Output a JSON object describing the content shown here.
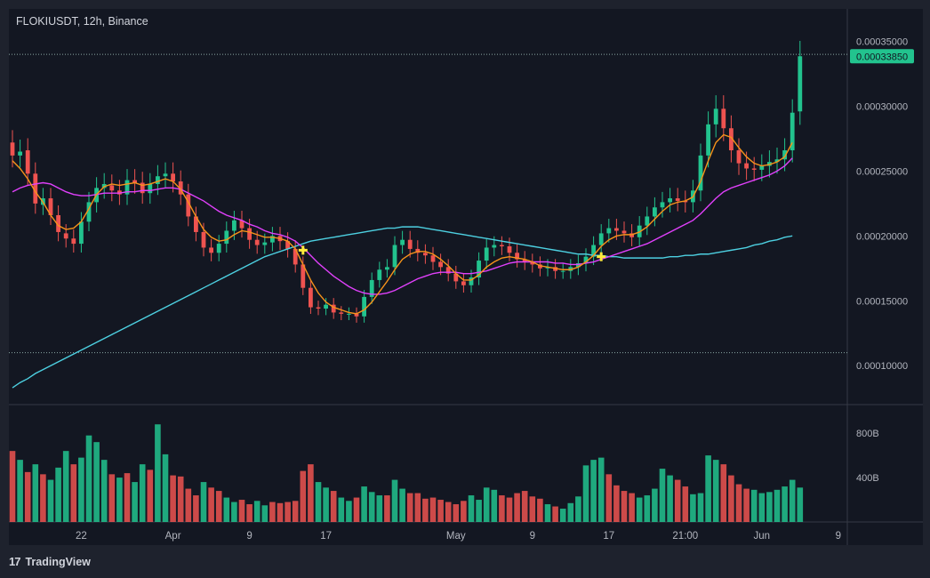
{
  "header": {
    "title": "FLOKIUSDT, 12h, Binance"
  },
  "footer": {
    "brand": "TradingView",
    "logo_icon": "tradingview-logo-icon"
  },
  "colors": {
    "background": "#131722",
    "frame": "#1e222d",
    "up": "#26a69a",
    "up_candle": "#22c38e",
    "down": "#ef5350",
    "ma_fast": "#f7931a",
    "ma_mid": "#e040fb",
    "ma_slow": "#4dd0e1",
    "signal": "#ffeb3b",
    "price_tag": "#22c38e"
  },
  "chart_data": {
    "type": "candlestick",
    "symbol": "FLOKIUSDT",
    "interval": "12h",
    "exchange": "Binance",
    "last_price": "0.00033850",
    "price_axis": {
      "range": [
        7e-05,
        0.000375
      ],
      "tick_labels": [
        "0.00035000",
        "0.00030000",
        "0.00025000",
        "0.00020000",
        "0.00015000",
        "0.00010000"
      ],
      "tick_values": [
        0.00035,
        0.0003,
        0.00025,
        0.0002,
        0.00015,
        0.0001
      ]
    },
    "volume_axis": {
      "range": [
        0,
        1050
      ],
      "tick_labels": [
        "800B",
        "400B"
      ],
      "tick_values": [
        800,
        400
      ]
    },
    "time_axis": {
      "tick_labels": [
        "22",
        "Apr",
        "9",
        "17",
        "May",
        "9",
        "17",
        "21:00",
        "Jun",
        "9"
      ],
      "tick_index": [
        9,
        21,
        31,
        41,
        58,
        68,
        78,
        88,
        98,
        108
      ]
    },
    "horizontal_levels": [
      0.00034,
      0.00011
    ],
    "signals": [
      {
        "index": 38,
        "price": 0.000189
      },
      {
        "index": 77,
        "price": 0.000184
      }
    ],
    "candles_close": [
      0.000262,
      0.000265,
      0.000248,
      0.000225,
      0.000229,
      0.000216,
      0.000203,
      0.000198,
      0.000194,
      0.000211,
      0.000226,
      0.000237,
      0.00024,
      0.000235,
      0.000232,
      0.000243,
      0.000241,
      0.000233,
      0.00024,
      0.000246,
      0.000248,
      0.000242,
      0.000232,
      0.000215,
      0.000203,
      0.000191,
      0.000187,
      0.000194,
      0.000204,
      0.000212,
      0.000206,
      0.000197,
      0.000193,
      0.000195,
      0.0002,
      0.000196,
      0.00019,
      0.000178,
      0.00016,
      0.000145,
      0.000144,
      0.000147,
      0.000141,
      0.00014,
      0.00014,
      0.000138,
      0.000153,
      0.000166,
      0.000174,
      0.000176,
      0.000193,
      0.000197,
      0.00019,
      0.000187,
      0.000185,
      0.00018,
      0.000176,
      0.000171,
      0.000165,
      0.000162,
      0.000168,
      0.000181,
      0.000191,
      0.000193,
      0.000192,
      0.000187,
      0.000182,
      0.00018,
      0.000178,
      0.000175,
      0.000176,
      0.000173,
      0.000173,
      0.000176,
      0.000179,
      0.000184,
      0.000193,
      0.000202,
      0.000206,
      0.000204,
      0.000202,
      0.000199,
      0.000208,
      0.000215,
      0.000222,
      0.000226,
      0.000229,
      0.000227,
      0.000226,
      0.000235,
      0.000262,
      0.000286,
      0.000298,
      0.000283,
      0.000266,
      0.000256,
      0.000252,
      0.000251,
      0.000254,
      0.000257,
      0.000259,
      0.000266,
      0.000295,
      0.0003385
    ],
    "candles_open": [
      0.000272,
      0.000262,
      0.000266,
      0.000248,
      0.000224,
      0.000229,
      0.000216,
      0.000202,
      0.000198,
      0.000194,
      0.000211,
      0.000226,
      0.000237,
      0.000239,
      0.000235,
      0.000232,
      0.000243,
      0.000241,
      0.000233,
      0.00024,
      0.000246,
      0.000248,
      0.000242,
      0.000232,
      0.000215,
      0.000203,
      0.000191,
      0.000187,
      0.000194,
      0.000204,
      0.000212,
      0.000206,
      0.000197,
      0.000193,
      0.000195,
      0.0002,
      0.000196,
      0.00019,
      0.000178,
      0.00016,
      0.000145,
      0.000144,
      0.000147,
      0.000141,
      0.00014,
      0.00014,
      0.000138,
      0.000153,
      0.000166,
      0.000174,
      0.000176,
      0.000193,
      0.000197,
      0.00019,
      0.000187,
      0.000185,
      0.00018,
      0.000176,
      0.000171,
      0.000165,
      0.000162,
      0.000168,
      0.000181,
      0.000191,
      0.000193,
      0.000192,
      0.000187,
      0.000182,
      0.00018,
      0.000178,
      0.000175,
      0.000176,
      0.000173,
      0.000173,
      0.000176,
      0.000179,
      0.000184,
      0.000193,
      0.000202,
      0.000206,
      0.000204,
      0.000202,
      0.000199,
      0.000208,
      0.000215,
      0.000222,
      0.000226,
      0.000229,
      0.000227,
      0.000226,
      0.000235,
      0.000262,
      0.000286,
      0.000298,
      0.000283,
      0.000266,
      0.000256,
      0.000252,
      0.000251,
      0.000254,
      0.000257,
      0.000259,
      0.000266,
      0.000296
    ],
    "volumes": [
      640,
      560,
      450,
      520,
      430,
      380,
      490,
      640,
      520,
      580,
      780,
      720,
      560,
      430,
      400,
      440,
      360,
      520,
      470,
      880,
      610,
      420,
      410,
      300,
      240,
      360,
      310,
      280,
      220,
      180,
      200,
      160,
      190,
      150,
      180,
      170,
      180,
      190,
      460,
      520,
      360,
      310,
      280,
      220,
      190,
      220,
      320,
      270,
      240,
      240,
      380,
      300,
      260,
      260,
      210,
      220,
      200,
      180,
      160,
      190,
      240,
      200,
      310,
      290,
      240,
      220,
      260,
      280,
      230,
      210,
      160,
      140,
      120,
      170,
      230,
      510,
      560,
      580,
      430,
      330,
      280,
      260,
      220,
      240,
      300,
      480,
      420,
      380,
      320,
      250,
      260,
      600,
      560,
      520,
      420,
      340,
      300,
      290,
      260,
      270,
      290,
      320,
      380,
      310
    ],
    "volume_up": [
      false,
      true,
      false,
      true,
      false,
      true,
      true,
      true,
      false,
      true,
      true,
      true,
      true,
      false,
      true,
      false,
      true,
      true,
      false,
      true,
      true,
      false,
      false,
      false,
      false,
      true,
      false,
      false,
      true,
      true,
      false,
      false,
      true,
      true,
      false,
      false,
      false,
      false,
      false,
      false,
      true,
      true,
      false,
      true,
      true,
      false,
      true,
      true,
      true,
      false,
      true,
      true,
      false,
      false,
      false,
      false,
      false,
      false,
      false,
      false,
      true,
      true,
      true,
      true,
      false,
      false,
      false,
      false,
      false,
      false,
      true,
      false,
      true,
      true,
      true,
      true,
      true,
      true,
      false,
      false,
      false,
      false,
      true,
      true,
      true,
      true,
      true,
      false,
      false,
      true,
      true,
      true,
      true,
      false,
      false,
      false,
      false,
      true,
      true,
      true,
      true,
      true,
      true,
      true
    ],
    "ma_fast": [
      0.000258,
      0.000252,
      0.000244,
      0.000234,
      0.000226,
      0.000216,
      0.000208,
      0.000205,
      0.000206,
      0.000211,
      0.000221,
      0.000232,
      0.000238,
      0.00024,
      0.000239,
      0.00024,
      0.000241,
      0.000239,
      0.00024,
      0.000242,
      0.000244,
      0.000242,
      0.000236,
      0.000226,
      0.000215,
      0.000205,
      0.000199,
      0.000196,
      0.000197,
      0.000201,
      0.000204,
      0.000203,
      0.000201,
      0.000199,
      0.000199,
      0.000198,
      0.000196,
      0.00019,
      0.000178,
      0.000166,
      0.000156,
      0.000149,
      0.000145,
      0.000143,
      0.000141,
      0.00014,
      0.000143,
      0.000149,
      0.000157,
      0.000165,
      0.000174,
      0.000182,
      0.000186,
      0.000188,
      0.000188,
      0.000186,
      0.000182,
      0.000177,
      0.000171,
      0.000166,
      0.000166,
      0.00017,
      0.000176,
      0.00018,
      0.000183,
      0.000184,
      0.000183,
      0.000182,
      0.00018,
      0.000177,
      0.000176,
      0.000175,
      0.000174,
      0.000174,
      0.000176,
      0.00018,
      0.000185,
      0.000192,
      0.000197,
      0.0002,
      0.000201,
      0.000201,
      0.000203,
      0.000207,
      0.000213,
      0.000219,
      0.000224,
      0.000226,
      0.000227,
      0.00023,
      0.000242,
      0.000258,
      0.000272,
      0.000278,
      0.000276,
      0.000268,
      0.000261,
      0.000256,
      0.000254,
      0.000255,
      0.000257,
      0.000261,
      0.000272
    ],
    "ma_mid": [
      0.000234,
      0.000237,
      0.000239,
      0.00024,
      0.000241,
      0.00024,
      0.000237,
      0.000234,
      0.000232,
      0.000231,
      0.000231,
      0.000232,
      0.000233,
      0.000233,
      0.000233,
      0.000234,
      0.000234,
      0.000235,
      0.000235,
      0.000236,
      0.000237,
      0.000237,
      0.000236,
      0.000233,
      0.00023,
      0.000227,
      0.000223,
      0.000219,
      0.000216,
      0.000214,
      0.000212,
      0.000209,
      0.000207,
      0.000204,
      0.000202,
      0.000201,
      0.000199,
      0.000196,
      0.000191,
      0.000185,
      0.000179,
      0.000174,
      0.000169,
      0.000165,
      0.000161,
      0.000158,
      0.000156,
      0.000155,
      0.000155,
      0.000156,
      0.000158,
      0.000161,
      0.000164,
      0.000167,
      0.000169,
      0.000171,
      0.000172,
      0.000172,
      0.000172,
      0.000171,
      0.000171,
      0.000172,
      0.000173,
      0.000175,
      0.000177,
      0.000179,
      0.00018,
      0.00018,
      0.00018,
      0.00018,
      0.00018,
      0.000179,
      0.000179,
      0.000178,
      0.000178,
      0.000179,
      0.00018,
      0.000182,
      0.000184,
      0.000186,
      0.000188,
      0.00019,
      0.000192,
      0.000194,
      0.000197,
      0.0002,
      0.000203,
      0.000206,
      0.000209,
      0.000212,
      0.000217,
      0.000223,
      0.000229,
      0.000234,
      0.000237,
      0.000239,
      0.000241,
      0.000243,
      0.000245,
      0.000247,
      0.00025,
      0.000254,
      0.00026
    ],
    "ma_slow": [
      8.3e-05,
      8.7e-05,
      9e-05,
      9.4e-05,
      9.7e-05,
      0.0001,
      0.000103,
      0.000106,
      0.000109,
      0.000112,
      0.000115,
      0.000118,
      0.000121,
      0.000124,
      0.000127,
      0.00013,
      0.000133,
      0.000136,
      0.000139,
      0.000142,
      0.000145,
      0.000148,
      0.000151,
      0.000154,
      0.000157,
      0.00016,
      0.000163,
      0.000166,
      0.000169,
      0.000172,
      0.000175,
      0.000178,
      0.000181,
      0.000184,
      0.000186,
      0.000188,
      0.00019,
      0.000192,
      0.000194,
      0.000196,
      0.000197,
      0.000198,
      0.000199,
      0.0002,
      0.000201,
      0.000202,
      0.000203,
      0.000204,
      0.000205,
      0.000206,
      0.000206,
      0.000207,
      0.000207,
      0.000207,
      0.000206,
      0.000205,
      0.000204,
      0.000203,
      0.000202,
      0.000201,
      0.0002,
      0.000199,
      0.000198,
      0.000197,
      0.000196,
      0.000195,
      0.000194,
      0.000193,
      0.000192,
      0.000191,
      0.00019,
      0.000189,
      0.000188,
      0.000187,
      0.000186,
      0.000186,
      0.000185,
      0.000185,
      0.000184,
      0.000184,
      0.000183,
      0.000183,
      0.000183,
      0.000183,
      0.000183,
      0.000183,
      0.000184,
      0.000184,
      0.000185,
      0.000185,
      0.000186,
      0.000186,
      0.000187,
      0.000188,
      0.000189,
      0.00019,
      0.000191,
      0.000193,
      0.000194,
      0.000196,
      0.000197,
      0.000199,
      0.0002
    ]
  }
}
